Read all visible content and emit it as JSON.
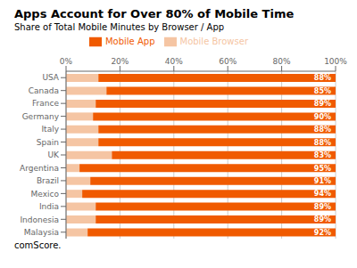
{
  "chart_data": {
    "type": "bar",
    "orientation": "horizontal",
    "stacked": true,
    "title": "Apps Account for Over 80% of Mobile Time",
    "subtitle": "Share of Total Mobile Minutes by Browser / App",
    "categories": [
      "USA",
      "Canada",
      "France",
      "Germany",
      "Italy",
      "Spain",
      "UK",
      "Argentina",
      "Brazil",
      "Mexico",
      "India",
      "Indonesia",
      "Malaysia"
    ],
    "series": [
      {
        "name": "Mobile Browser",
        "color": "#f5c5a3",
        "values": [
          12,
          15,
          11,
          10,
          12,
          12,
          17,
          5,
          9,
          6,
          11,
          11,
          8
        ]
      },
      {
        "name": "Mobile App",
        "color": "#f05a00",
        "values": [
          88,
          85,
          89,
          90,
          88,
          88,
          83,
          95,
          91,
          94,
          89,
          89,
          92
        ],
        "value_labels": [
          "88%",
          "85%",
          "89%",
          "90%",
          "88%",
          "88%",
          "83%",
          "95%",
          "91%",
          "94%",
          "89%",
          "89%",
          "92%"
        ]
      }
    ],
    "xlim": [
      0,
      100
    ],
    "xticks": [
      {
        "value": 0,
        "label": "0%"
      },
      {
        "value": 20,
        "label": "20%"
      },
      {
        "value": 40,
        "label": "40%"
      },
      {
        "value": 60,
        "label": "60%"
      },
      {
        "value": 80,
        "label": "80%"
      },
      {
        "value": 100,
        "label": "100%"
      }
    ],
    "grid": true,
    "legend": "top",
    "data_labels": true,
    "annotations": [
      "comScore."
    ]
  }
}
